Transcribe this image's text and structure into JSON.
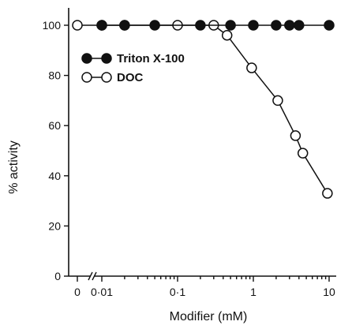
{
  "chart_data": {
    "type": "line",
    "xscale": "log (with broken axis at 0)",
    "xlabel": "Modifier (mM)",
    "ylabel": "% activity",
    "ylim": [
      0,
      100
    ],
    "x_ticks": [
      "0",
      "0·01",
      "0·1",
      "1",
      "10"
    ],
    "y_ticks": [
      "0",
      "20",
      "40",
      "60",
      "80",
      "100"
    ],
    "grid": false,
    "legend_position": "top-left",
    "series": [
      {
        "name": "Triton X-100",
        "marker": "filled-circle",
        "color": "#111111",
        "points": [
          {
            "x": 0.01,
            "y": 100
          },
          {
            "x": 0.02,
            "y": 100
          },
          {
            "x": 0.05,
            "y": 100
          },
          {
            "x": 0.2,
            "y": 100
          },
          {
            "x": 0.5,
            "y": 100
          },
          {
            "x": 1,
            "y": 100
          },
          {
            "x": 2,
            "y": 100
          },
          {
            "x": 3,
            "y": 100
          },
          {
            "x": 4,
            "y": 100
          },
          {
            "x": 10,
            "y": 100
          }
        ]
      },
      {
        "name": "DOC",
        "marker": "open-circle",
        "color": "#111111",
        "points": [
          {
            "x": 0,
            "y": 100
          },
          {
            "x": 0.01,
            "y": 100
          },
          {
            "x": 0.02,
            "y": 100
          },
          {
            "x": 0.1,
            "y": 100
          },
          {
            "x": 0.3,
            "y": 100
          },
          {
            "x": 0.45,
            "y": 96
          },
          {
            "x": 0.95,
            "y": 83
          },
          {
            "x": 2.1,
            "y": 70
          },
          {
            "x": 3.6,
            "y": 56
          },
          {
            "x": 4.5,
            "y": 49
          },
          {
            "x": 9.5,
            "y": 33
          }
        ]
      }
    ]
  }
}
